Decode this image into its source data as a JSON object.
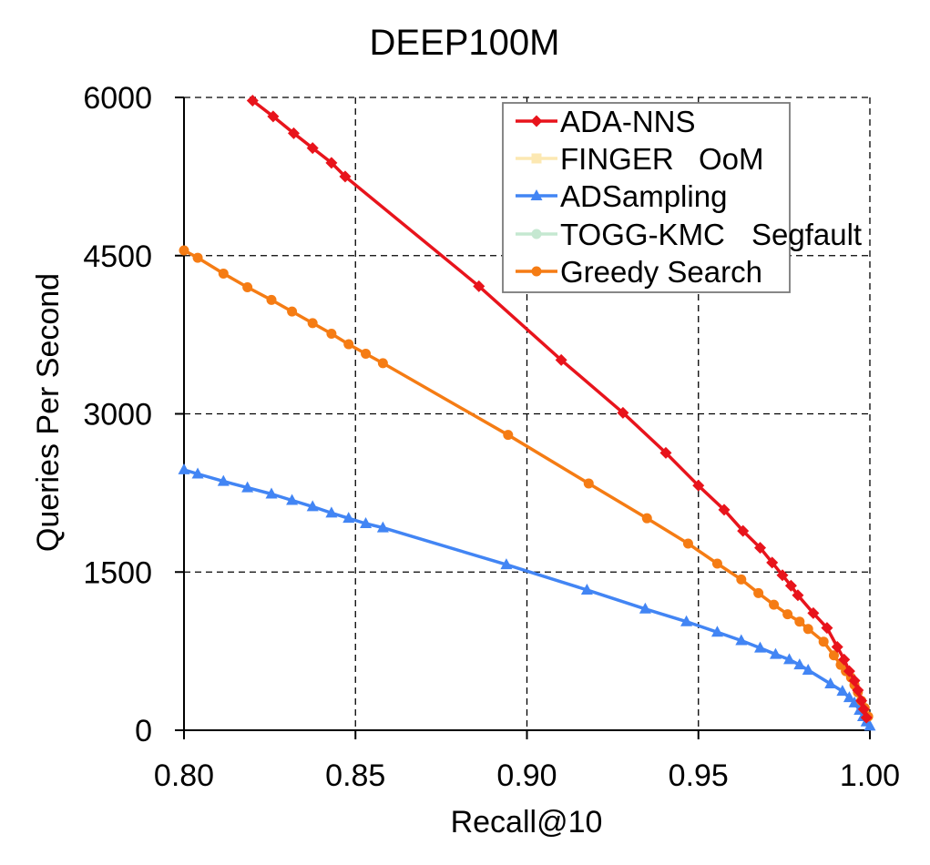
{
  "chart_data": {
    "type": "line",
    "title": "DEEP100M",
    "xlabel": "Recall@10",
    "ylabel": "Queries Per Second",
    "xlim": [
      0.8,
      1.0
    ],
    "ylim": [
      0,
      6000
    ],
    "x_ticks": [
      0.8,
      0.85,
      0.9,
      0.95,
      1.0
    ],
    "x_tick_labels": [
      "0.80",
      "0.85",
      "0.90",
      "0.95",
      "1.00"
    ],
    "y_ticks": [
      0,
      1500,
      3000,
      4500,
      6000
    ],
    "y_tick_labels": [
      "0",
      "1500",
      "3000",
      "4500",
      "6000"
    ],
    "grid": true,
    "legend_position": "top-right",
    "series": [
      {
        "name": "ADA-NNS",
        "color": "#e8141c",
        "marker": "diamond",
        "active": true,
        "x": [
          0.82,
          0.826,
          0.832,
          0.8375,
          0.843,
          0.847,
          0.886,
          0.91,
          0.928,
          0.9405,
          0.95,
          0.9575,
          0.963,
          0.968,
          0.9715,
          0.9745,
          0.977,
          0.979,
          0.9835,
          0.9875,
          0.9905,
          0.9925,
          0.994,
          0.9955,
          0.9965,
          0.9975,
          0.9982,
          0.999
        ],
        "y": [
          5970,
          5820,
          5660,
          5520,
          5380,
          5250,
          4210,
          3510,
          3010,
          2630,
          2320,
          2090,
          1890,
          1730,
          1590,
          1470,
          1370,
          1280,
          1110,
          970,
          790,
          670,
          560,
          470,
          380,
          280,
          200,
          120
        ]
      },
      {
        "name": "FINGER",
        "color": "#fce8b2",
        "marker": "square",
        "active": false,
        "annotation": "OoM",
        "x": [],
        "y": []
      },
      {
        "name": "ADSampling",
        "color": "#4285f4",
        "marker": "triangle",
        "active": true,
        "x": [
          0.8,
          0.804,
          0.8115,
          0.8185,
          0.8255,
          0.8315,
          0.8375,
          0.843,
          0.848,
          0.853,
          0.858,
          0.894,
          0.9175,
          0.9345,
          0.9465,
          0.9555,
          0.9625,
          0.968,
          0.9725,
          0.9765,
          0.9795,
          0.982,
          0.9885,
          0.992,
          0.994,
          0.9955,
          0.997,
          0.998,
          0.999,
          1.0
        ],
        "y": [
          2470,
          2430,
          2360,
          2300,
          2240,
          2180,
          2120,
          2060,
          2010,
          1960,
          1920,
          1570,
          1330,
          1150,
          1030,
          930,
          850,
          780,
          720,
          670,
          620,
          570,
          440,
          370,
          310,
          260,
          190,
          130,
          80,
          40
        ]
      },
      {
        "name": "TOGG-KMC",
        "color": "#c5e8d1",
        "marker": "circle",
        "active": false,
        "annotation": "Segfault",
        "x": [],
        "y": []
      },
      {
        "name": "Greedy Search",
        "color": "#f57c14",
        "marker": "circle",
        "active": true,
        "x": [
          0.8,
          0.804,
          0.8115,
          0.8185,
          0.8255,
          0.8315,
          0.8375,
          0.843,
          0.848,
          0.853,
          0.858,
          0.8945,
          0.918,
          0.935,
          0.947,
          0.9555,
          0.9625,
          0.9675,
          0.972,
          0.976,
          0.9795,
          0.982,
          0.9865,
          0.9895,
          0.9915,
          0.993,
          0.9945,
          0.9955,
          0.9965,
          0.9975,
          0.9985,
          0.9995
        ],
        "y": [
          4550,
          4480,
          4330,
          4200,
          4080,
          3970,
          3860,
          3760,
          3660,
          3570,
          3480,
          2800,
          2340,
          2010,
          1770,
          1580,
          1430,
          1300,
          1190,
          1100,
          1030,
          960,
          840,
          710,
          620,
          560,
          500,
          430,
          360,
          280,
          210,
          130
        ]
      }
    ]
  }
}
